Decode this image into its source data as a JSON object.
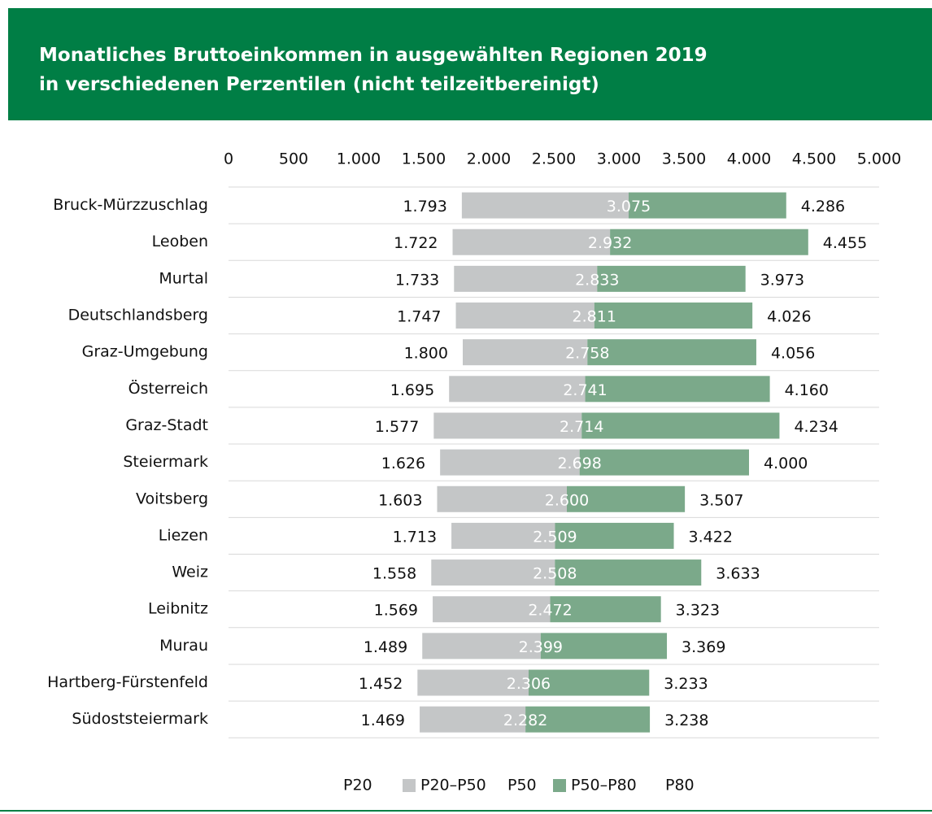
{
  "chart_data": {
    "type": "bar",
    "title": [
      "Monatliches Bruttoeinkommen in ausgewählten Regionen 2019",
      "in verschiedenen Perzentilen (nicht teilzeitbereinigt)"
    ],
    "categories": [
      "Bruck-Mürzzuschlag",
      "Leoben",
      "Murtal",
      "Deutschlandsberg",
      "Graz-Umgebung",
      "Österreich",
      "Graz-Stadt",
      "Steiermark",
      "Voitsberg",
      "Liezen",
      "Weiz",
      "Leibnitz",
      "Murau",
      "Hartberg-Fürstenfeld",
      "Südoststeiermark"
    ],
    "series": [
      {
        "name": "P20",
        "values": [
          1793,
          1722,
          1733,
          1747,
          1800,
          1695,
          1577,
          1626,
          1603,
          1713,
          1558,
          1569,
          1489,
          1452,
          1469
        ],
        "value_labels": [
          "1.793",
          "1.722",
          "1.733",
          "1.747",
          "1.800",
          "1.695",
          "1.577",
          "1.626",
          "1.603",
          "1.713",
          "1.558",
          "1.569",
          "1.489",
          "1.452",
          "1.469"
        ]
      },
      {
        "name": "P50",
        "values": [
          3075,
          2932,
          2833,
          2811,
          2758,
          2741,
          2714,
          2698,
          2600,
          2509,
          2508,
          2472,
          2399,
          2306,
          2282
        ],
        "value_labels": [
          "3.075",
          "2.932",
          "2.833",
          "2.811",
          "2.758",
          "2.741",
          "2.714",
          "2.698",
          "2.600",
          "2.509",
          "2.508",
          "2.472",
          "2.399",
          "2.306",
          "2.282"
        ]
      },
      {
        "name": "P80",
        "values": [
          4286,
          4455,
          3973,
          4026,
          4056,
          4160,
          4234,
          4000,
          3507,
          3422,
          3633,
          3323,
          3369,
          3233,
          3238
        ],
        "value_labels": [
          "4.286",
          "4.455",
          "3.973",
          "4.026",
          "4.056",
          "4.160",
          "4.234",
          "4.000",
          "3.507",
          "3.422",
          "3.633",
          "3.323",
          "3.369",
          "3.233",
          "3.238"
        ]
      }
    ],
    "segments": [
      {
        "name": "P20–P50",
        "color": "#c4c6c7"
      },
      {
        "name": "P50–P80",
        "color": "#7ba98a"
      }
    ],
    "xlim": [
      0,
      5000
    ],
    "xticks": [
      0,
      500,
      {
        "value": 1000,
        "label": "1.000"
      },
      {
        "value": 1500,
        "label": "1.500"
      },
      {
        "value": 2000,
        "label": "2.000"
      },
      {
        "value": 2500,
        "label": "2.500"
      },
      {
        "value": 3000,
        "label": "3.000"
      },
      {
        "value": 3500,
        "label": "3.500"
      },
      {
        "value": 4000,
        "label": "4.000"
      },
      {
        "value": 4500,
        "label": "4.500"
      },
      {
        "value": 5000,
        "label": "5.000"
      }
    ],
    "grid": true
  }
}
